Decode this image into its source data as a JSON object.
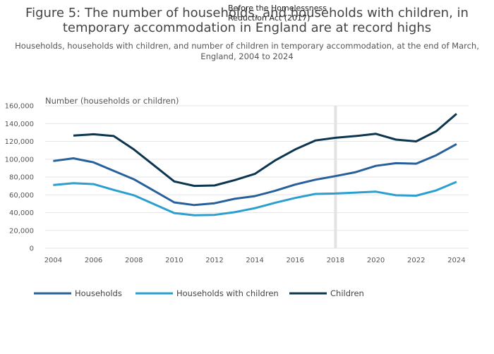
{
  "title_line1": "Figure 5: The number of households, and households with children, in",
  "title_line2": "temporary accommodation in England are at record highs",
  "subtitle_line1": "Households, households with children, and number of children in temporary accommodation, at the end of March,",
  "subtitle_line2": "England, 2004 to 2024",
  "annotation_line1": "Before the Homelessness",
  "annotation_line2": "Reduction Act (2017)",
  "colors": {
    "households": "#27609a",
    "households_with_children": "#2a9fd0",
    "children": "#0c3550",
    "marker": "#e3e3e3"
  },
  "chart_data": {
    "type": "line",
    "title": "Figure 5: The number of households, and households with children, in temporary accommodation in England are at record highs",
    "ylabel": "Number (households or children)",
    "xlabel": "",
    "xlim": [
      2003.6,
      2024.6
    ],
    "ylim": [
      0,
      160000
    ],
    "xticks": [
      "2004",
      "2006",
      "2008",
      "2010",
      "2012",
      "2014",
      "2016",
      "2018",
      "2020",
      "2022",
      "2024"
    ],
    "yticks": [
      "0",
      "20,000",
      "40,000",
      "60,000",
      "80,000",
      "100,000",
      "120,000",
      "140,000",
      "160,000"
    ],
    "marker_year": 2018,
    "legend_position": "bottom-left",
    "series": [
      {
        "key": "households",
        "name": "Households",
        "x": [
          2004,
          2005,
          2006,
          2007,
          2008,
          2009,
          2010,
          2011,
          2012,
          2013,
          2014,
          2015,
          2016,
          2017,
          2018,
          2019,
          2020,
          2021,
          2022,
          2023,
          2024
        ],
        "values": [
          98000,
          101000,
          96500,
          87000,
          77500,
          64500,
          51500,
          48500,
          50500,
          55500,
          58500,
          64500,
          71500,
          77000,
          81000,
          85500,
          92500,
          95500,
          95000,
          104500,
          117000
        ]
      },
      {
        "key": "households_with_children",
        "name": "Households with children",
        "x": [
          2004,
          2005,
          2006,
          2007,
          2008,
          2009,
          2010,
          2011,
          2012,
          2013,
          2014,
          2015,
          2016,
          2017,
          2018,
          2019,
          2020,
          2021,
          2022,
          2023,
          2024
        ],
        "values": [
          71000,
          73000,
          72000,
          65500,
          59500,
          49500,
          39500,
          37000,
          37500,
          40500,
          45000,
          51000,
          56500,
          61000,
          61500,
          62500,
          63500,
          59500,
          59000,
          65000,
          74500
        ]
      },
      {
        "key": "children",
        "name": "Children",
        "x": [
          2005,
          2006,
          2007,
          2008,
          2009,
          2010,
          2011,
          2012,
          2013,
          2014,
          2015,
          2016,
          2017,
          2018,
          2019,
          2020,
          2021,
          2022,
          2023,
          2024
        ],
        "values": [
          126500,
          128000,
          126000,
          111000,
          93000,
          75000,
          70000,
          70500,
          76500,
          83500,
          98500,
          111000,
          121000,
          124000,
          126000,
          128500,
          122000,
          120000,
          131500,
          151000
        ]
      }
    ]
  }
}
